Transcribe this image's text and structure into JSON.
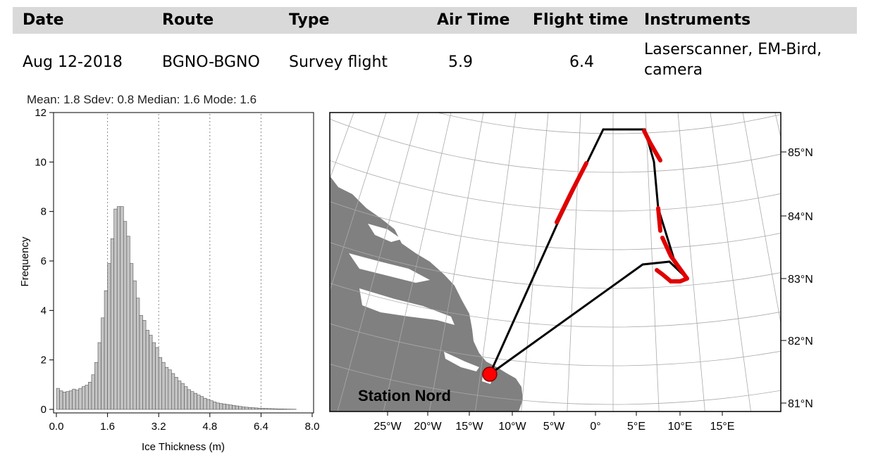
{
  "table": {
    "headers": [
      "Date",
      "Route",
      "Type",
      "Air Time",
      "Flight time",
      "Instruments"
    ],
    "row": {
      "date": "Aug 12-2018",
      "route": "BGNO-BGNO",
      "type": "Survey flight",
      "air_time": "5.9",
      "flight_time": "6.4",
      "instruments": "Laserscanner, EM-Bird, camera"
    }
  },
  "colors": {
    "header_bg": "#d9d9d9",
    "bar_fill": "#c4c4c4",
    "land": "#808080",
    "track": "#000000",
    "track_highlight": "#e00000",
    "station_marker": "#ff0000"
  },
  "chart_data": [
    {
      "type": "bar",
      "title": "Mean: 1.8 Sdev: 0.8 Median: 1.6 Mode: 1.6",
      "xlabel": "Ice Thickness (m)",
      "ylabel": "Frequency",
      "xlim": [
        0,
        8
      ],
      "ylim": [
        0,
        12
      ],
      "xticks": [
        "0.0",
        "1.6",
        "3.2",
        "4.8",
        "6.4",
        "8.0"
      ],
      "yticks": [
        "0",
        "2",
        "4",
        "6",
        "8",
        "10",
        "12"
      ],
      "grid": "vertical dotted lines at x ticks",
      "bin_width": 0.1,
      "bin_start": 0.0,
      "values": [
        0.85,
        0.75,
        0.7,
        0.72,
        0.75,
        0.82,
        0.78,
        0.85,
        0.92,
        0.98,
        1.1,
        1.4,
        1.9,
        2.7,
        3.7,
        4.8,
        5.9,
        6.9,
        8.1,
        8.2,
        8.2,
        7.6,
        7.0,
        5.9,
        5.2,
        4.5,
        3.8,
        3.6,
        3.2,
        3.0,
        2.7,
        2.5,
        2.1,
        1.9,
        1.7,
        1.6,
        1.45,
        1.3,
        1.15,
        1.05,
        0.92,
        0.8,
        0.72,
        0.65,
        0.58,
        0.52,
        0.45,
        0.4,
        0.35,
        0.3,
        0.26,
        0.24,
        0.22,
        0.2,
        0.18,
        0.16,
        0.14,
        0.12,
        0.1,
        0.09,
        0.08,
        0.07,
        0.06,
        0.05,
        0.045,
        0.04,
        0.035,
        0.03,
        0.025,
        0.02,
        0.018,
        0.015,
        0.012,
        0.01,
        0.008
      ]
    },
    {
      "type": "map",
      "meridian_labels": [
        "25°W",
        "20°W",
        "15°W",
        "10°W",
        "5°W",
        "0°",
        "5°E",
        "10°E",
        "15°E"
      ],
      "parallel_labels": [
        "85°N",
        "84°N",
        "83°N",
        "82°N",
        "81°N"
      ],
      "station_label": "Station Nord",
      "legend": "none"
    }
  ]
}
